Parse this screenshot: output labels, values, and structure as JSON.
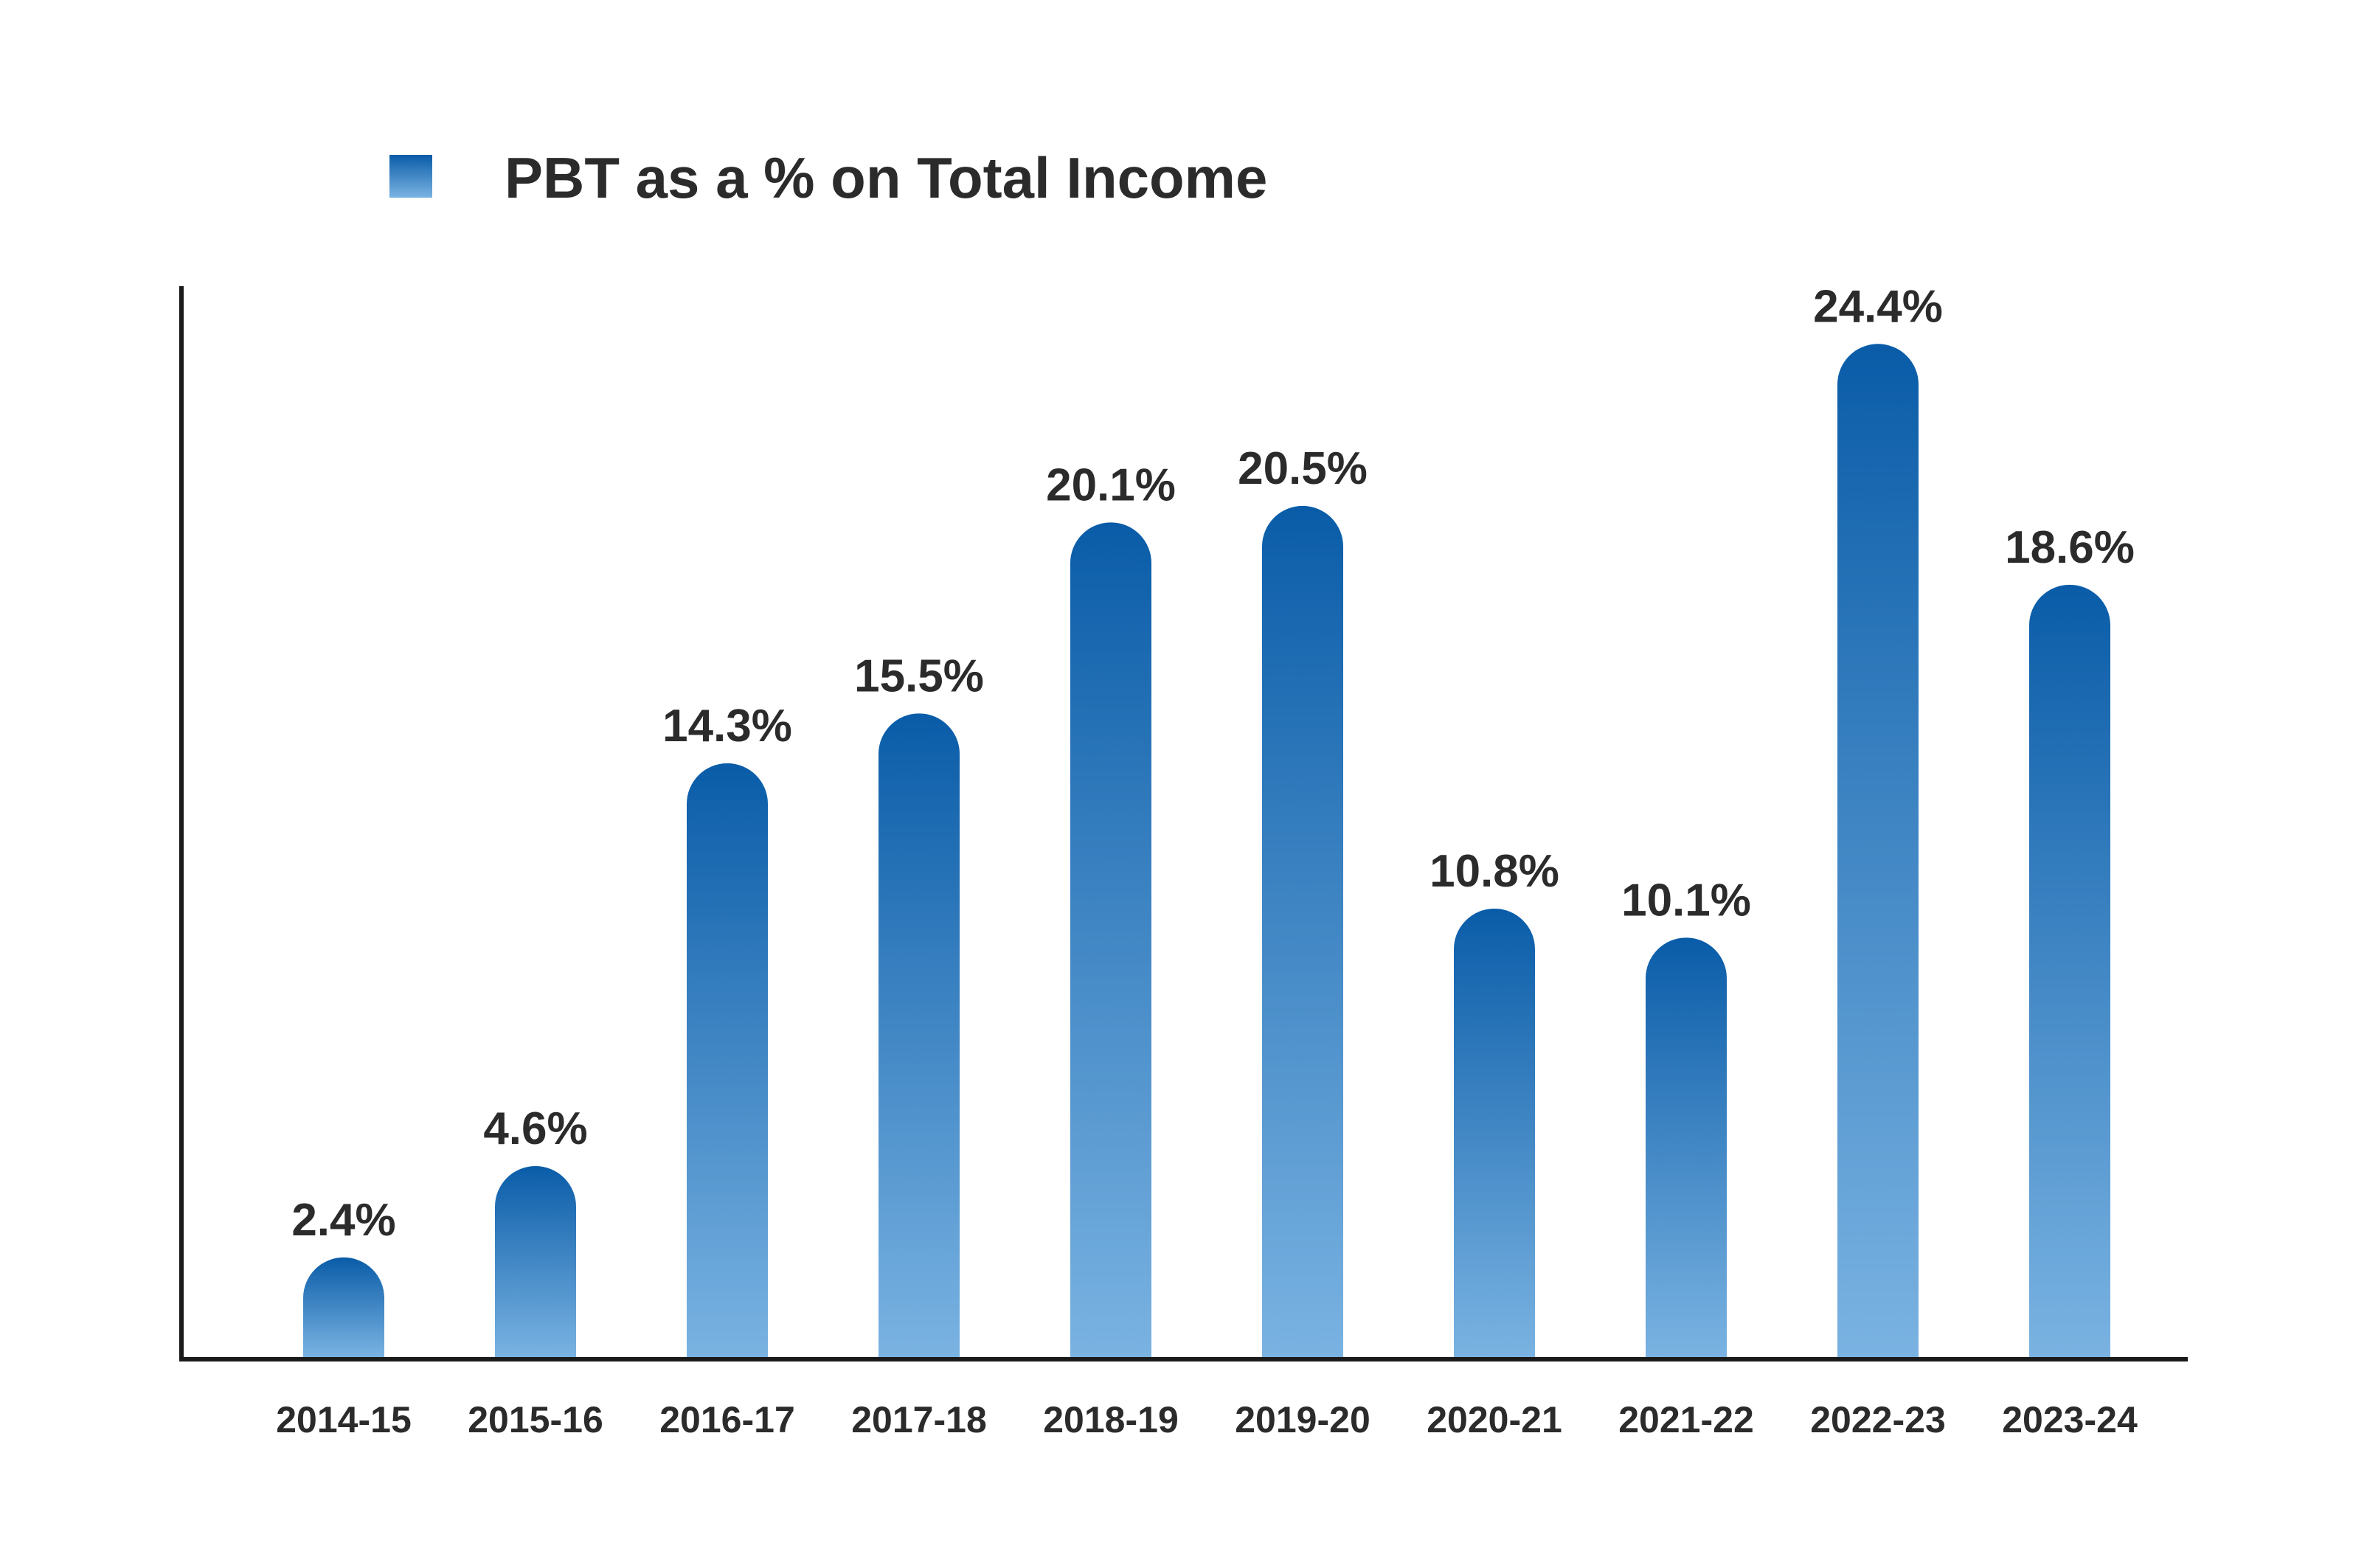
{
  "chart_data": {
    "type": "bar",
    "title": "",
    "xlabel": "",
    "ylabel": "",
    "ylim": [
      0,
      29
    ],
    "grid": false,
    "legend_position": "top-left",
    "categories": [
      "2014-15",
      "2015-16",
      "2016-17",
      "2017-18",
      "2018-19",
      "2019-20",
      "2020-21",
      "2021-22",
      "2022-23",
      "2023-24"
    ],
    "series": [
      {
        "name": "PBT as a % on Total Income",
        "values": [
          2.4,
          4.6,
          14.3,
          15.5,
          20.1,
          20.5,
          10.8,
          10.1,
          24.4,
          18.6
        ],
        "data_labels": [
          "2.4%",
          "4.6%",
          "14.3%",
          "15.5%",
          "20.1%",
          "20.5%",
          "10.8%",
          "10.1%",
          "24.4%",
          "18.6%"
        ]
      }
    ],
    "colors": {
      "bar_top": "#0a5ca8",
      "bar_bottom": "#7ab3e2",
      "axis": "#1a1a1a",
      "text": "#2b2b2b"
    }
  }
}
